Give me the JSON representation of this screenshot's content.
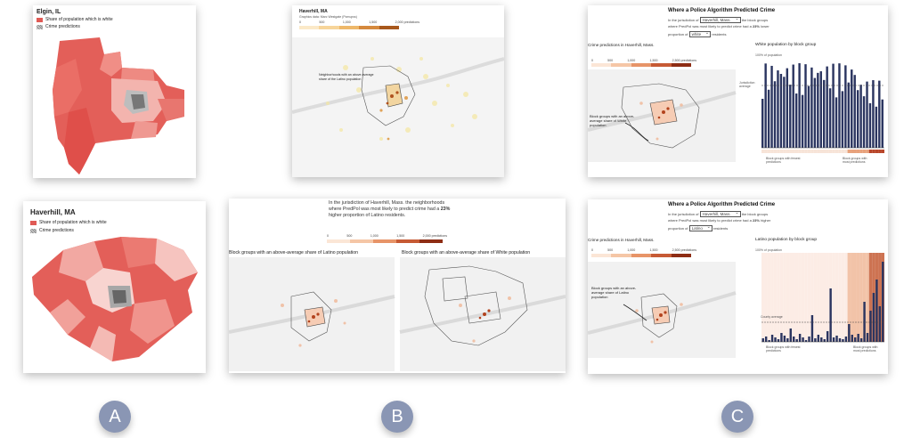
{
  "panel_a": {
    "top": {
      "title": "Elgin, IL",
      "legend_share": "Share of population which is white",
      "legend_crime": "Crime predictions"
    },
    "bottom": {
      "title": "Haverhill, MA",
      "legend_share": "Share of population which is white",
      "legend_crime": "Crime predictions"
    },
    "badge": "A"
  },
  "panel_b": {
    "top": {
      "title": "Haverhill, MA",
      "subtitle": "Graphics data: Marc Westgate (Pcmupss)",
      "ticks": [
        "0",
        "500",
        "1,000",
        "1,500",
        "2,000 predictions"
      ],
      "annotation": "Neighborhoods with an above average share of the Latino population"
    },
    "bottom": {
      "intro_pre": "In the jurisdiction of Haverhill, Mass. the neighborhoods where PredPol was most likely to predict crime had a ",
      "intro_pct": "23%",
      "intro_post": " higher proportion of Latino residents.",
      "ticks": [
        "0",
        "500",
        "1,000",
        "1,500",
        "2,000 predictions"
      ],
      "left_map_label": "Block groups with an above-average share of Latino population",
      "right_map_label": "Block groups with an above-average share of White population"
    },
    "badge": "B"
  },
  "panel_c": {
    "top": {
      "title": "Where a Police Algorithm Predicted Crime",
      "line1_pre": "In the jurisdiction of",
      "jurisdiction": "Haverhill, Mass.",
      "line1_post": "the block groups",
      "line2_pre": "where PredPol was most likely to predict crime had a",
      "pct": "23%",
      "line2_post": "lower",
      "line3_pre": "proportion of",
      "group": "white",
      "line3_post": "residents",
      "map_title": "Crime predictions in Haverhill, Mass.",
      "ticks": [
        "0",
        "500",
        "1,000",
        "1,500",
        "2,500 predictions"
      ],
      "annotation": "Block groups with an above-average share of White population",
      "chart_title": "White population by block group",
      "y_axis_title": "100% of population",
      "ref_label": "Jurisdiction average",
      "x_left": "Block groups with fewest predictions",
      "x_right": "Block groups with most predictions"
    },
    "bottom": {
      "title": "Where a Police Algorithm Predicted Crime",
      "line1_pre": "In the jurisdiction of",
      "jurisdiction": "Haverhill, Mass.",
      "line1_post": "the block groups",
      "line2_pre": "where PredPol was most likely to predict crime had a",
      "pct": "23%",
      "line2_post": "higher",
      "line3_pre": "proportion of",
      "group": "Latino",
      "line3_post": "residents",
      "map_title": "Crime predictions in Haverhill, Mass.",
      "ticks": [
        "0",
        "500",
        "1,000",
        "1,500",
        "2,500 predictions"
      ],
      "annotation": "Block groups with an above-average share of Latino population",
      "chart_title": "Latino population by block group",
      "y_axis_title": "100% of population",
      "ref_label": "County average",
      "x_left": "Block groups with fewest predictions",
      "x_right": "Block groups with most predictions"
    },
    "badge": "C"
  },
  "colors": {
    "choropleth_red": "#e05a55",
    "bar_navy": "#2b3560",
    "heat_orange": "#c8502a",
    "badge": "#8a96b4"
  }
}
